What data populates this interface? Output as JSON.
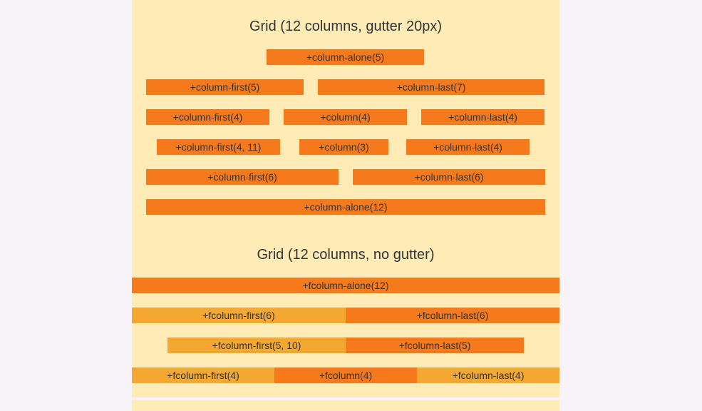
{
  "gutter_section": {
    "title": "Grid (12 columns, gutter 20px)",
    "rows": [
      [
        "+column-alone(5)"
      ],
      [
        "+column-first(5)",
        "+column-last(7)"
      ],
      [
        "+column-first(4)",
        "+column(4)",
        "+column-last(4)"
      ],
      [
        "+column-first(4, 11)",
        "+column(3)",
        "+column-last(4)"
      ],
      [
        "+column-first(6)",
        "+column-last(6)"
      ],
      [
        "+column-alone(12)"
      ]
    ]
  },
  "no_gutter_section": {
    "title": "Grid (12 columns, no gutter)",
    "rows": [
      [
        "+fcolumn-alone(12)"
      ],
      [
        "+fcolumn-first(6)",
        "+fcolumn-last(6)"
      ],
      [
        "+fcolumn-first(5, 10)",
        "+fcolumn-last(5)"
      ],
      [
        "+fcolumn-first(4)",
        "+fcolumn(4)",
        "+fcolumn-last(4)"
      ]
    ]
  },
  "colors": {
    "page_background": "#f8f3f8",
    "container_background": "#feebb6",
    "bar_dark": "#f6791b",
    "bar_light": "#f4a731",
    "text": "#333333"
  }
}
